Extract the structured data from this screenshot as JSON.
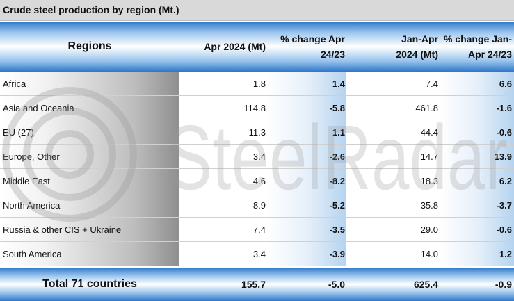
{
  "title": "Crude steel production by region (Mt.)",
  "watermark": {
    "text": "SteelRadar",
    "icon": "steelradar-logo-icon"
  },
  "colors": {
    "header_blue": "#2f78c8",
    "header_light": "#9cc6ee",
    "region_gray": "#8e8e8e",
    "pct_blue": "#b5d3ef"
  },
  "header": {
    "regions": "Regions",
    "col1": "Apr 2024 (Mt)",
    "col2_line1": "% change Apr",
    "col2_line2": "24/23",
    "col3_line1": "Jan-Apr",
    "col3_line2": "2024 (Mt)",
    "col4_line1": "% change Jan-",
    "col4_line2": "Apr 24/23"
  },
  "rows": [
    {
      "region": "Africa",
      "apr": "1.8",
      "apr_change": "1.4",
      "ytd": "7.4",
      "ytd_change": "6.6"
    },
    {
      "region": "Asia and Oceania",
      "apr": "114.8",
      "apr_change": "-5.8",
      "ytd": "461.8",
      "ytd_change": "-1.6"
    },
    {
      "region": "EU (27)",
      "apr": "11.3",
      "apr_change": "1.1",
      "ytd": "44.4",
      "ytd_change": "-0.6"
    },
    {
      "region": "Europe, Other",
      "apr": "3.4",
      "apr_change": "-2.6",
      "ytd": "14.7",
      "ytd_change": "13.9"
    },
    {
      "region": "Middle East",
      "apr": "4.6",
      "apr_change": "-8.2",
      "ytd": "18.3",
      "ytd_change": "6.2"
    },
    {
      "region": "North America",
      "apr": "8.9",
      "apr_change": "-5.2",
      "ytd": "35.8",
      "ytd_change": "-3.7"
    },
    {
      "region": "Russia & other CIS + Ukraine",
      "apr": "7.4",
      "apr_change": "-3.5",
      "ytd": "29.0",
      "ytd_change": "-0.6"
    },
    {
      "region": "South America",
      "apr": "3.4",
      "apr_change": "-3.9",
      "ytd": "14.0",
      "ytd_change": "1.2"
    }
  ],
  "total": {
    "label": "Total 71 countries",
    "apr": "155.7",
    "apr_change": "-5.0",
    "ytd": "625.4",
    "ytd_change": "-0.9"
  }
}
